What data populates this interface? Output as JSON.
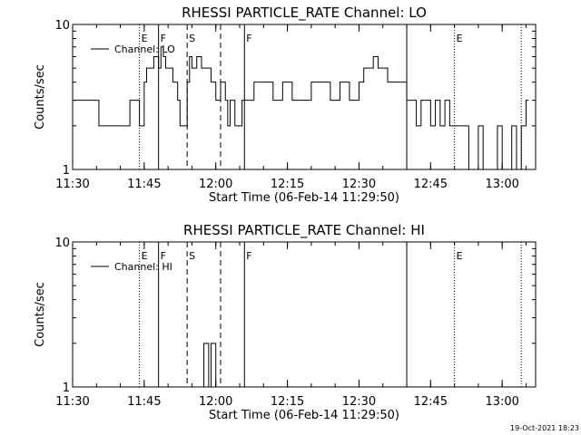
{
  "footer": {
    "timestamp": "19-Oct-2021 18:23"
  },
  "chart_data": [
    {
      "type": "line",
      "title": "RHESSI PARTICLE_RATE Channel: LO",
      "xlabel": "Start Time (06-Feb-14 11:29:50)",
      "ylabel": "Counts/sec",
      "y_scale": "log",
      "xlim": [
        "11:30",
        "13:07"
      ],
      "ylim": [
        1,
        10
      ],
      "x_ticks": [
        "11:30",
        "11:45",
        "12:00",
        "12:15",
        "12:30",
        "12:45",
        "13:00"
      ],
      "y_ticks": [
        "1",
        "10"
      ],
      "legend": {
        "label": "Channel: LO",
        "position": "top-left"
      },
      "markers": [
        {
          "time": "11:44",
          "label": "E",
          "style": "dotted"
        },
        {
          "time": "11:48",
          "label": "F",
          "style": "solid"
        },
        {
          "time": "11:54",
          "label": "S",
          "style": "dashed"
        },
        {
          "time": "12:01",
          "label": "",
          "style": "dashed"
        },
        {
          "time": "12:06",
          "label": "F",
          "style": "solid"
        },
        {
          "time": "12:40",
          "label": "",
          "style": "solid"
        },
        {
          "time": "12:50",
          "label": "E",
          "style": "dotted"
        },
        {
          "time": "13:04",
          "label": "",
          "style": "dotted"
        }
      ],
      "series": [
        {
          "name": "Channel: LO",
          "x": [
            "11:30",
            "11:35",
            "11:35.5",
            "11:36",
            "11:36.5",
            "11:41",
            "11:41.5",
            "11:42",
            "11:44",
            "11:44.5",
            "11:45",
            "11:45.5",
            "11:46",
            "11:46.5",
            "11:47",
            "11:47.5",
            "11:48",
            "11:48.5",
            "11:49",
            "11:49.5",
            "11:50",
            "11:51",
            "11:52",
            "11:52.5",
            "11:53",
            "11:54",
            "11:54.5",
            "11:55",
            "11:56",
            "11:57",
            "11:58",
            "11:59",
            "12:00",
            "12:01",
            "12:02",
            "12:02.5",
            "12:03",
            "12:03.5",
            "12:04",
            "12:05",
            "12:05.5",
            "12:06",
            "12:08",
            "12:10",
            "12:12",
            "12:14",
            "12:16",
            "12:18",
            "12:20",
            "12:22",
            "12:24",
            "12:26",
            "12:28",
            "12:30",
            "12:31",
            "12:32",
            "12:33",
            "12:34",
            "12:36",
            "12:38",
            "12:40",
            "12:41",
            "12:42",
            "12:43",
            "12:44",
            "12:45",
            "12:46",
            "12:47",
            "12:48",
            "12:49",
            "12:50",
            "12:51",
            "12:52",
            "12:53",
            "12:54",
            "12:55",
            "12:56",
            "12:57",
            "12:58",
            "12:59",
            "13:00",
            "13:01",
            "13:02",
            "13:03",
            "13:04",
            "13:05"
          ],
          "y": [
            3,
            3,
            2,
            2,
            2,
            2,
            2,
            3,
            2,
            2,
            4,
            5,
            5,
            5,
            6,
            6,
            5,
            7,
            6,
            5,
            5,
            4,
            3,
            2,
            2,
            4,
            6,
            5,
            6,
            5,
            5,
            4,
            3,
            4,
            3,
            2,
            3,
            3,
            2,
            2,
            3,
            3,
            4,
            4,
            3,
            4,
            3,
            3,
            4,
            4,
            3,
            4,
            3,
            4,
            5,
            5,
            6,
            5,
            4,
            4,
            3,
            3,
            2,
            3,
            3,
            2,
            3,
            2,
            3,
            2,
            2,
            2,
            2,
            1,
            1,
            2,
            1,
            1,
            1,
            2,
            1,
            1,
            2,
            1,
            2,
            3
          ]
        }
      ]
    },
    {
      "type": "line",
      "title": "RHESSI PARTICLE_RATE Channel: HI",
      "xlabel": "Start Time (06-Feb-14 11:29:50)",
      "ylabel": "Counts/sec",
      "y_scale": "log",
      "xlim": [
        "11:30",
        "13:07"
      ],
      "ylim": [
        1,
        10
      ],
      "x_ticks": [
        "11:30",
        "11:45",
        "12:00",
        "12:15",
        "12:30",
        "12:45",
        "13:00"
      ],
      "y_ticks": [
        "1",
        "10"
      ],
      "legend": {
        "label": "Channel: HI",
        "position": "top-left"
      },
      "markers": [
        {
          "time": "11:44",
          "label": "E",
          "style": "dotted"
        },
        {
          "time": "11:48",
          "label": "F",
          "style": "solid"
        },
        {
          "time": "11:54",
          "label": "S",
          "style": "dashed"
        },
        {
          "time": "12:01",
          "label": "",
          "style": "dashed"
        },
        {
          "time": "12:06",
          "label": "F",
          "style": "solid"
        },
        {
          "time": "12:40",
          "label": "",
          "style": "solid"
        },
        {
          "time": "12:50",
          "label": "E",
          "style": "dotted"
        },
        {
          "time": "13:04",
          "label": "",
          "style": "dotted"
        }
      ],
      "series": [
        {
          "name": "Channel: HI",
          "x": [
            "11:57",
            "11:57.5",
            "11:58",
            "11:58.5",
            "11:59",
            "11:59.5",
            "12:00"
          ],
          "y": [
            1,
            2,
            2,
            1,
            2,
            2,
            1
          ]
        }
      ]
    }
  ]
}
